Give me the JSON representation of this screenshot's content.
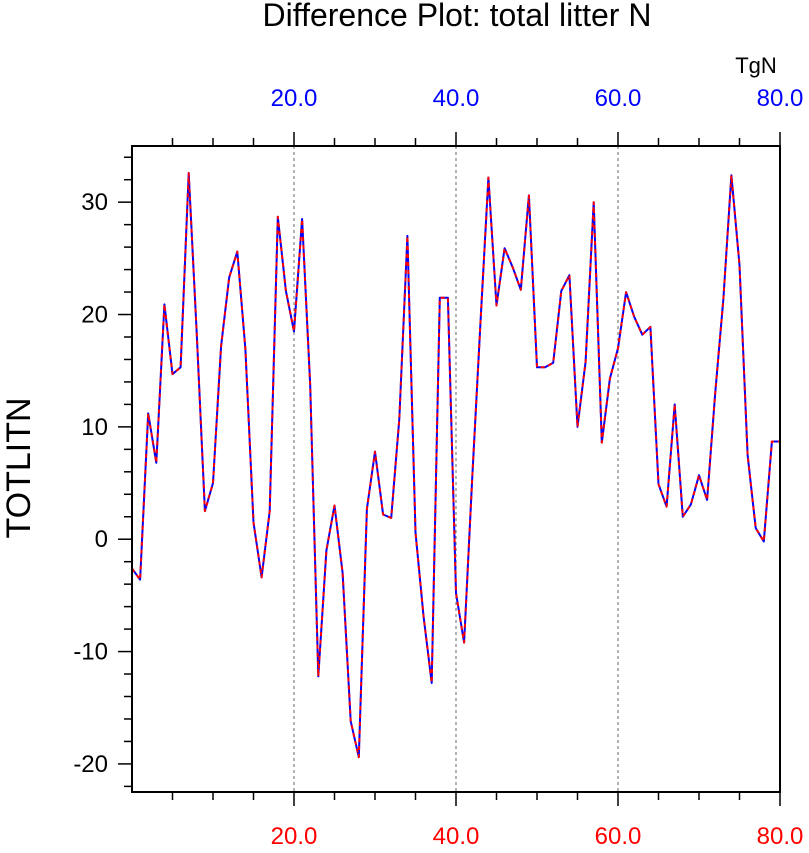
{
  "chart_data": {
    "type": "line",
    "title": "Difference Plot: total litter N",
    "xlabel": "",
    "ylabel": "TOTLITN",
    "top_axis_label": "TgN",
    "xlim": [
      0,
      80
    ],
    "ylim": [
      -22.5,
      35
    ],
    "x_ticks": [
      20,
      40,
      60,
      80
    ],
    "x_tick_labels": [
      "20.0",
      "40.0",
      "60.0",
      "80.0"
    ],
    "y_ticks": [
      -20,
      -10,
      0,
      10,
      20,
      30
    ],
    "y_tick_labels": [
      "-20",
      "-10",
      "0",
      "10",
      "20",
      "30"
    ],
    "x_minor_step": 5,
    "y_minor_step": 2,
    "grid": "dashed vertical at major x ticks",
    "colors": {
      "top_axis": "#0000ff",
      "bottom_axis": "#ff0000",
      "series_a": "#ff0000",
      "series_b": "#0000ff",
      "grid": "#808080"
    },
    "x": [
      0,
      1,
      2,
      3,
      4,
      5,
      6,
      7,
      8,
      9,
      10,
      11,
      12,
      13,
      14,
      15,
      16,
      17,
      18,
      19,
      20,
      21,
      22,
      23,
      24,
      25,
      26,
      27,
      28,
      29,
      30,
      31,
      32,
      33,
      34,
      35,
      36,
      37,
      38,
      39,
      40,
      41,
      42,
      43,
      44,
      45,
      46,
      47,
      48,
      49,
      50,
      51,
      52,
      53,
      54,
      55,
      56,
      57,
      58,
      59,
      60,
      61,
      62,
      63,
      64,
      65,
      66,
      67,
      68,
      69,
      70,
      71,
      72,
      73,
      74,
      75,
      76,
      77,
      78,
      79,
      80
    ],
    "series": [
      {
        "values": [
          -2.6,
          -3.6,
          11.2,
          6.8,
          20.9,
          14.7,
          15.3,
          32.6,
          18.2,
          2.5,
          5.0,
          17.2,
          23.3,
          25.6,
          16.9,
          1.5,
          -3.4,
          2.5,
          28.7,
          22.1,
          18.5,
          28.5,
          13.7,
          -12.2,
          -1.0,
          3.0,
          -3.0,
          -16.2,
          -19.4,
          2.7,
          7.8,
          2.2,
          1.9,
          10.7,
          27.0,
          0.6,
          -6.9,
          -12.8,
          21.5,
          21.5,
          -4.8,
          -9.2,
          5.4,
          19.0,
          32.2,
          20.8,
          25.9,
          24.2,
          22.2,
          30.6,
          15.3,
          15.3,
          15.7,
          22.1,
          23.5,
          10.0,
          15.8,
          30.0,
          8.6,
          14.3,
          17.0,
          22.0,
          19.8,
          18.2,
          18.9,
          4.9,
          2.9,
          12.0,
          2.0,
          3.1,
          5.7,
          3.5,
          13.0,
          21.3,
          32.4,
          24.4,
          7.5,
          1.0,
          -0.2,
          8.7,
          8.7
        ]
      }
    ]
  }
}
